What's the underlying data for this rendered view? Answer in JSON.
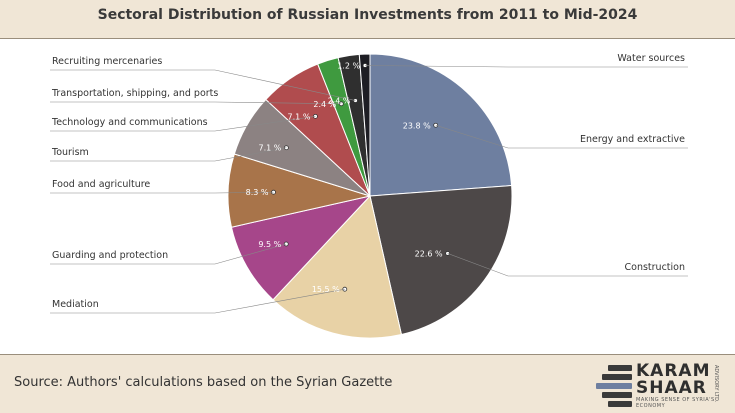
{
  "title": "Sectoral Distribution of Russian Investments from 2011 to Mid-2024",
  "source": "Source: Authors' calculations based on the Syrian Gazette",
  "logo": {
    "line1": "KARAM",
    "line2": "SHAAR",
    "tagline": "MAKING SENSE OF SYRIA'S ECONOMY",
    "advisory": "ADVISORY LTD."
  },
  "chart_data": {
    "type": "pie",
    "title": "Sectoral Distribution of Russian Investments from 2011 to Mid-2024",
    "slices": [
      {
        "name": "Energy and extractive",
        "value": 23.8,
        "label": "23.8 %",
        "color": "#6e7fa0",
        "label_color": "#ffffff"
      },
      {
        "name": "Construction",
        "value": 22.6,
        "label": "22.6 %",
        "color": "#4d4848",
        "label_color": "#ffffff"
      },
      {
        "name": "Mediation",
        "value": 15.5,
        "label": "15.5 %",
        "color": "#e8d2a6",
        "label_color": "#ffffff"
      },
      {
        "name": "Guarding and protection",
        "value": 9.5,
        "label": "9.5 %",
        "color": "#a6468a",
        "label_color": "#ffffff"
      },
      {
        "name": "Food and agriculture",
        "value": 8.3,
        "label": "8.3 %",
        "color": "#a8744a",
        "label_color": "#ffffff"
      },
      {
        "name": "Tourism",
        "value": 7.1,
        "label": "7.1 %",
        "color": "#8c8282",
        "label_color": "#ffffff"
      },
      {
        "name": "Technology and communications",
        "value": 7.1,
        "label": "7.1 %",
        "color": "#b04c4e",
        "label_color": "#ffffff"
      },
      {
        "name": "Transportation, shipping, and ports",
        "value": 2.4,
        "label": "2.4 %",
        "color": "#3f9a3f",
        "label_color": "#ffffff"
      },
      {
        "name": "Recruiting mercenaries",
        "value": 2.4,
        "label": "2.4 %",
        "color": "#2f2f2f",
        "label_color": "#ffffff"
      },
      {
        "name": "Water sources",
        "value": 1.2,
        "label": "1.2 %",
        "color": "#1e1e24",
        "label_color": "#ffffff"
      }
    ]
  }
}
